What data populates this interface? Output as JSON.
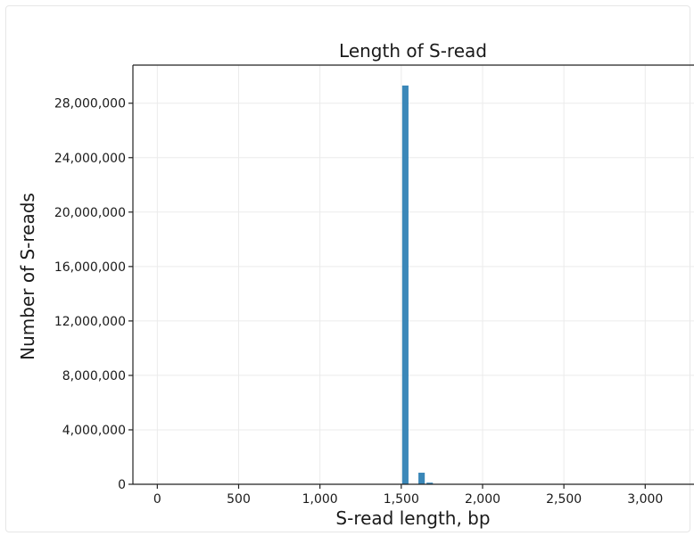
{
  "chart_data": {
    "type": "bar",
    "title": "Length of S-read",
    "xlabel": "S-read length, bp",
    "ylabel": "Number of S-reads",
    "xlim": [
      -150,
      3300
    ],
    "ylim": [
      0,
      30800000
    ],
    "xticks": [
      0,
      500,
      1000,
      1500,
      2000,
      2500,
      3000
    ],
    "xtick_labels": [
      "0",
      "500",
      "1,000",
      "1,500",
      "2,000",
      "2,500",
      "3,000"
    ],
    "yticks": [
      0,
      4000000,
      8000000,
      12000000,
      16000000,
      20000000,
      24000000,
      28000000
    ],
    "ytick_labels": [
      "0",
      "4,000,000",
      "8,000,000",
      "12,000,000",
      "16,000,000",
      "20,000,000",
      "24,000,000",
      "28,000,000"
    ],
    "bin_width": 50,
    "bins": [
      {
        "x_start": 1500,
        "value": 29300000
      },
      {
        "x_start": 1550,
        "value": 0
      },
      {
        "x_start": 1600,
        "value": 850000
      },
      {
        "x_start": 1650,
        "value": 120000
      }
    ],
    "grid": true,
    "bar_color": "#3a87b8"
  }
}
